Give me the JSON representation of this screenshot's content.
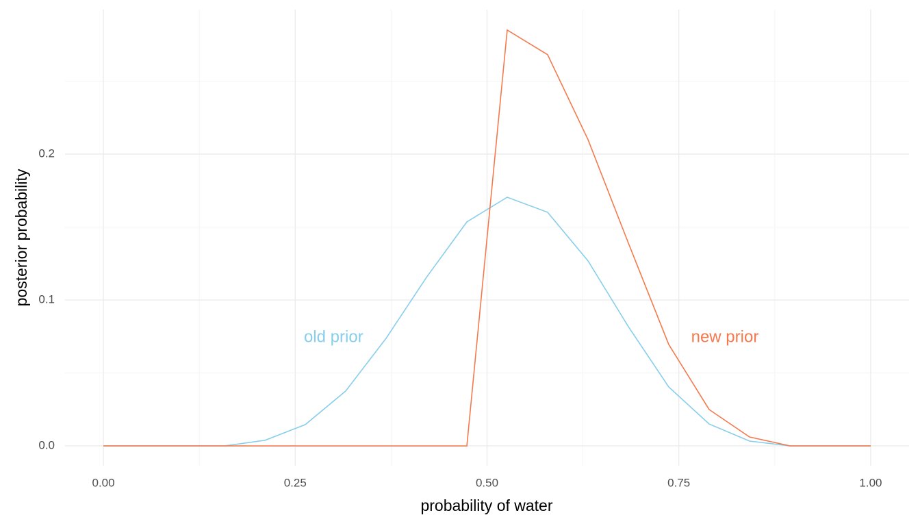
{
  "chart_data": {
    "type": "line",
    "x_label": "probability of water",
    "y_label": "posterior probability",
    "x": [
      0,
      0.0526,
      0.1053,
      0.1579,
      0.2105,
      0.2632,
      0.3158,
      0.3684,
      0.4211,
      0.4737,
      0.5263,
      0.5789,
      0.6316,
      0.6842,
      0.7368,
      0.7895,
      0.8421,
      0.8947,
      0.9474,
      1
    ],
    "series": [
      {
        "name": "old prior",
        "color": "#87ceeb",
        "values": [
          0,
          0,
          0,
          0,
          0.0038,
          0.0146,
          0.0376,
          0.0737,
          0.1155,
          0.1535,
          0.1704,
          0.1601,
          0.1268,
          0.0817,
          0.0404,
          0.015,
          0.0033,
          0,
          0,
          0
        ]
      },
      {
        "name": "new prior",
        "color": "#f47a4e",
        "values": [
          0,
          0,
          0,
          0,
          0,
          0,
          0,
          0,
          0,
          0,
          0.285,
          0.2681,
          0.2099,
          0.139,
          0.0695,
          0.0249,
          0.0061,
          0,
          0,
          0
        ]
      }
    ],
    "annotations": [
      {
        "text": "old prior",
        "x": 0.3,
        "y": 0.074,
        "color": "#87ceeb"
      },
      {
        "text": "new prior",
        "x": 0.81,
        "y": 0.074,
        "color": "#f47a4e"
      }
    ],
    "xlim": [
      -0.05,
      1.05
    ],
    "ylim": [
      -0.0136,
      0.299
    ],
    "xticks": [
      {
        "value": 0,
        "label": "0.00"
      },
      {
        "value": 0.25,
        "label": "0.25"
      },
      {
        "value": 0.5,
        "label": "0.50"
      },
      {
        "value": 0.75,
        "label": "0.75"
      },
      {
        "value": 1,
        "label": "1.00"
      }
    ],
    "yticks": [
      {
        "value": 0,
        "label": "0.0"
      },
      {
        "value": 0.1,
        "label": "0.1"
      },
      {
        "value": 0.2,
        "label": "0.2"
      }
    ],
    "x_minor_grid": [
      0.125,
      0.375,
      0.625,
      0.875
    ],
    "y_minor_grid": [
      0.05,
      0.15,
      0.25
    ],
    "grid": true
  }
}
